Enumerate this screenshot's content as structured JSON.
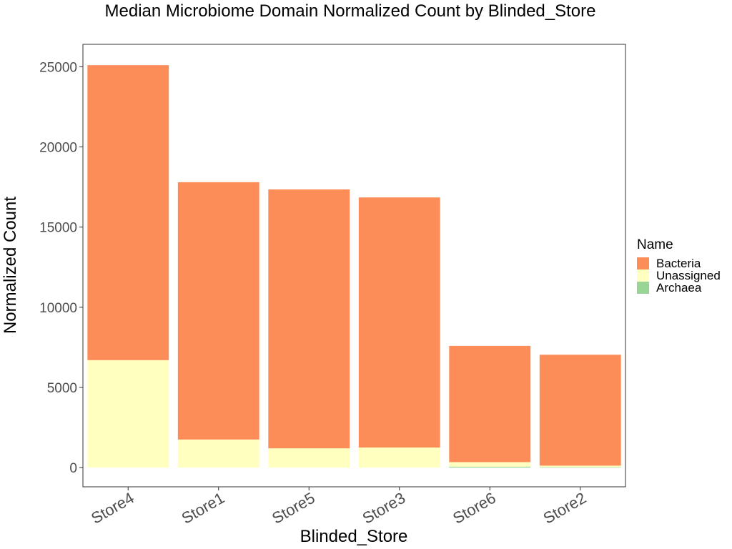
{
  "chart_data": {
    "type": "bar",
    "stacked": true,
    "title": "Median Microbiome Domain Normalized Count by Blinded_Store",
    "xlabel": "Blinded_Store",
    "ylabel": "Normalized Count",
    "ylim": [
      -1200,
      26400
    ],
    "yticks": [
      0,
      5000,
      10000,
      15000,
      20000,
      25000
    ],
    "yticks_text": [
      "0",
      "5000",
      "10000",
      "15000",
      "20000",
      "25000"
    ],
    "categories": [
      "Store4",
      "Store1",
      "Store5",
      "Store3",
      "Store6",
      "Store2"
    ],
    "grid": false,
    "legend": {
      "title": "Name",
      "position": "right"
    },
    "series": [
      {
        "name": "Archaea",
        "color": "#99d594",
        "values": [
          0,
          0,
          0,
          0,
          60,
          30
        ]
      },
      {
        "name": "Unassigned",
        "color": "#ffffbf",
        "values": [
          6700,
          1750,
          1200,
          1250,
          280,
          90
        ]
      },
      {
        "name": "Bacteria",
        "color": "#fc8d59",
        "values": [
          18400,
          16050,
          16150,
          15600,
          7250,
          6920
        ]
      }
    ],
    "legend_order": [
      "Bacteria",
      "Unassigned",
      "Archaea"
    ]
  }
}
